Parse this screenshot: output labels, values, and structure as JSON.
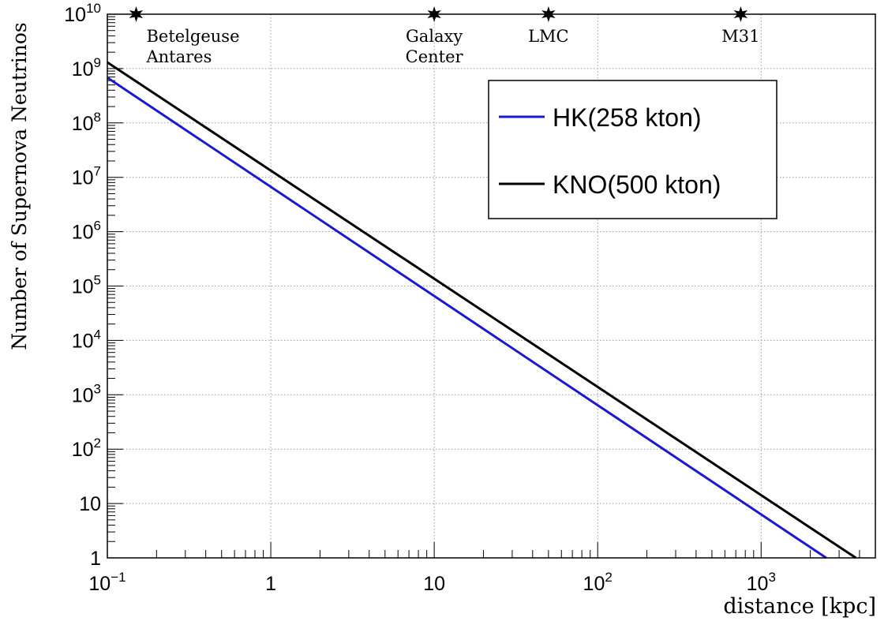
{
  "chart_data": {
    "type": "line",
    "xlabel": "distance [kpc]",
    "ylabel": "Number of Supernova Neutrinos",
    "x_scale": "log",
    "y_scale": "log",
    "xlim": [
      0.1,
      5000
    ],
    "ylim": [
      1,
      10000000000
    ],
    "grid": true,
    "legend_position": "top-right",
    "x_tick_labels": [
      {
        "value": 0.1,
        "base": "10",
        "exp": "−1"
      },
      {
        "value": 1,
        "base": "1",
        "exp": ""
      },
      {
        "value": 10,
        "base": "10",
        "exp": ""
      },
      {
        "value": 100,
        "base": "10",
        "exp": "2"
      },
      {
        "value": 1000,
        "base": "10",
        "exp": "3"
      }
    ],
    "y_tick_labels": [
      {
        "value": 1,
        "base": "1",
        "exp": ""
      },
      {
        "value": 10,
        "base": "10",
        "exp": ""
      },
      {
        "value": 100,
        "base": "10",
        "exp": "2"
      },
      {
        "value": 1000,
        "base": "10",
        "exp": "3"
      },
      {
        "value": 10000,
        "base": "10",
        "exp": "4"
      },
      {
        "value": 100000,
        "base": "10",
        "exp": "5"
      },
      {
        "value": 1000000,
        "base": "10",
        "exp": "6"
      },
      {
        "value": 10000000,
        "base": "10",
        "exp": "7"
      },
      {
        "value": 100000000,
        "base": "10",
        "exp": "8"
      },
      {
        "value": 1000000000,
        "base": "10",
        "exp": "9"
      },
      {
        "value": 10000000000,
        "base": "10",
        "exp": "10"
      }
    ],
    "series": [
      {
        "name": "HK(258 kton)",
        "color": "#1a1acc",
        "x": [
          0.1,
          2500
        ],
        "y": [
          680000000,
          1
        ]
      },
      {
        "name": "KNO(500 kton)",
        "color": "#000000",
        "x": [
          0.1,
          3800
        ],
        "y": [
          1300000000,
          1
        ]
      }
    ],
    "annotations": [
      {
        "id": "betelgeuse",
        "x": 0.15,
        "lines": [
          "Betelgeuse",
          "Antares"
        ]
      },
      {
        "id": "galaxy-center",
        "x": 10,
        "lines": [
          "Galaxy",
          "Center"
        ]
      },
      {
        "id": "lmc",
        "x": 50,
        "lines": [
          "LMC"
        ]
      },
      {
        "id": "m31",
        "x": 750,
        "lines": [
          "M31"
        ]
      }
    ]
  }
}
